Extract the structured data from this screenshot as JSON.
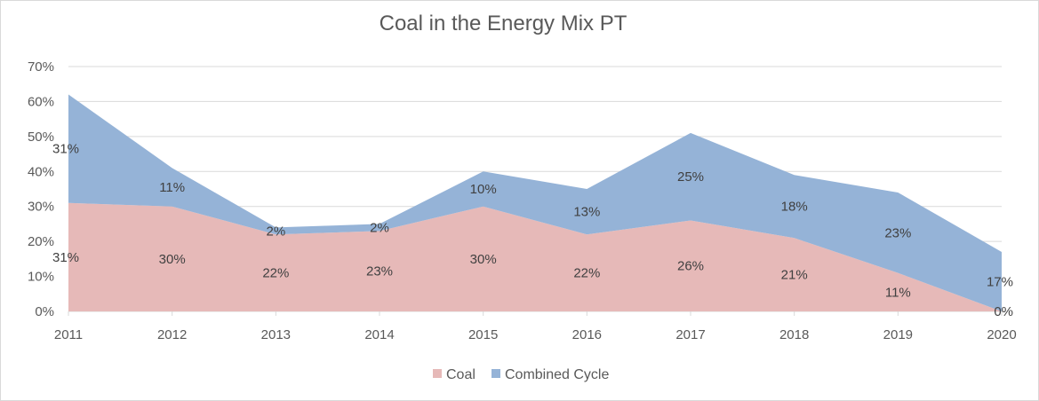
{
  "chart_data": {
    "type": "area",
    "stacked": true,
    "title": "Coal in the Energy Mix PT",
    "categories": [
      "2011",
      "2012",
      "2013",
      "2014",
      "2015",
      "2016",
      "2017",
      "2018",
      "2019",
      "2020"
    ],
    "series": [
      {
        "name": "Coal",
        "color": "#e6b9b8",
        "values": [
          31,
          30,
          22,
          23,
          30,
          22,
          26,
          21,
          11,
          0
        ],
        "labels": [
          "31%",
          "30%",
          "22%",
          "23%",
          "30%",
          "22%",
          "26%",
          "21%",
          "11%",
          "0%"
        ]
      },
      {
        "name": "Combined Cycle",
        "color": "#95b3d7",
        "values": [
          31,
          11,
          2,
          2,
          10,
          13,
          25,
          18,
          23,
          17
        ],
        "labels": [
          "31%",
          "11%",
          "2%",
          "2%",
          "10%",
          "13%",
          "25%",
          "18%",
          "23%",
          "17%"
        ]
      }
    ],
    "y_ticks": [
      "0%",
      "10%",
      "20%",
      "30%",
      "40%",
      "50%",
      "60%",
      "70%"
    ],
    "ylim": [
      0,
      70
    ],
    "grid": true,
    "legend": "bottom"
  }
}
